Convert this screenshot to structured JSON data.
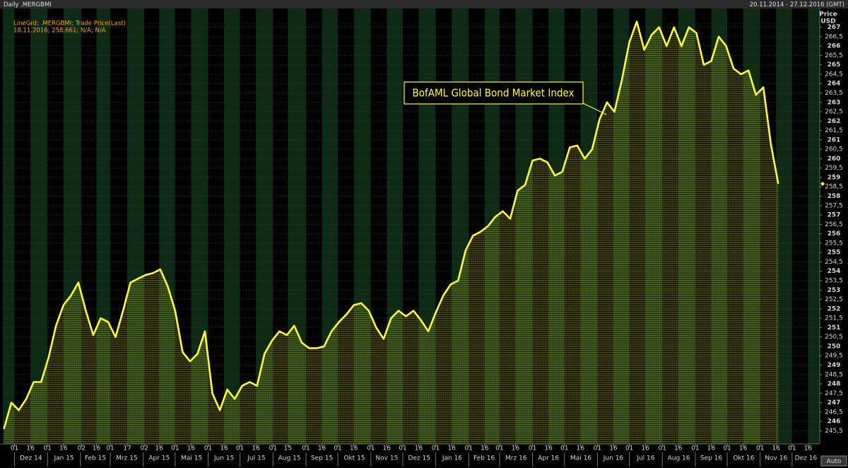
{
  "header": {
    "title": "Daily .MERGBMI",
    "range": "20.11.2014 - 27.12.2016 (GMT)"
  },
  "chart_data": {
    "type": "line",
    "legend_detail": "18.11.2016; 258,661; N/A; N/A",
    "annotation": "BofAML Global Bond Market Index",
    "y_axis_label": "Price",
    "y_axis_unit": "USD",
    "auto_button": "Auto",
    "grid": true,
    "band_colors": [
      "#0d2a14",
      "#000000"
    ],
    "xlim": [
      "2014-11-20",
      "2016-12-27"
    ],
    "ylim": [
      244.8,
      268
    ],
    "x": [
      "2014-11-21",
      "2014-11-28",
      "2014-12-05",
      "2014-12-12",
      "2014-12-19",
      "2014-12-26",
      "2015-01-02",
      "2015-01-09",
      "2015-01-16",
      "2015-01-23",
      "2015-01-30",
      "2015-02-06",
      "2015-02-13",
      "2015-02-20",
      "2015-02-27",
      "2015-03-06",
      "2015-03-13",
      "2015-03-20",
      "2015-03-27",
      "2015-04-03",
      "2015-04-10",
      "2015-04-17",
      "2015-04-24",
      "2015-05-01",
      "2015-05-08",
      "2015-05-15",
      "2015-05-22",
      "2015-05-29",
      "2015-06-05",
      "2015-06-12",
      "2015-06-19",
      "2015-06-26",
      "2015-07-03",
      "2015-07-10",
      "2015-07-17",
      "2015-07-24",
      "2015-07-31",
      "2015-08-07",
      "2015-08-14",
      "2015-08-21",
      "2015-08-28",
      "2015-09-04",
      "2015-09-11",
      "2015-09-18",
      "2015-09-25",
      "2015-10-02",
      "2015-10-09",
      "2015-10-16",
      "2015-10-23",
      "2015-10-30",
      "2015-11-06",
      "2015-11-13",
      "2015-11-20",
      "2015-11-27",
      "2015-12-04",
      "2015-12-11",
      "2015-12-18",
      "2015-12-25",
      "2016-01-01",
      "2016-01-08",
      "2016-01-15",
      "2016-01-22",
      "2016-01-29",
      "2016-02-05",
      "2016-02-12",
      "2016-02-19",
      "2016-02-26",
      "2016-03-04",
      "2016-03-11",
      "2016-03-18",
      "2016-03-25",
      "2016-04-01",
      "2016-04-08",
      "2016-04-15",
      "2016-04-22",
      "2016-04-29",
      "2016-05-06",
      "2016-05-13",
      "2016-05-20",
      "2016-05-27",
      "2016-06-03",
      "2016-06-10",
      "2016-06-17",
      "2016-06-24",
      "2016-07-01",
      "2016-07-08",
      "2016-07-15",
      "2016-07-22",
      "2016-07-29",
      "2016-08-05",
      "2016-08-12",
      "2016-08-19",
      "2016-08-26",
      "2016-09-02",
      "2016-09-09",
      "2016-09-16",
      "2016-09-23",
      "2016-09-30",
      "2016-10-07",
      "2016-10-14",
      "2016-10-21",
      "2016-10-28",
      "2016-11-04",
      "2016-11-11",
      "2016-11-18"
    ],
    "series": [
      {
        "name": "LineGrd; .MERGBMI; Trade Price(Last)",
        "color": "#ffff2e",
        "values": [
          245.6,
          247.0,
          246.6,
          247.2,
          248.1,
          248.1,
          249.4,
          251.1,
          252.2,
          252.7,
          253.4,
          251.9,
          250.6,
          251.5,
          251.3,
          250.5,
          251.9,
          253.4,
          253.6,
          253.8,
          253.9,
          254.1,
          253.2,
          251.9,
          249.7,
          249.2,
          249.6,
          250.8,
          247.5,
          246.6,
          247.7,
          247.2,
          247.9,
          248.1,
          247.9,
          249.6,
          250.3,
          250.8,
          250.6,
          251.1,
          250.2,
          249.9,
          249.9,
          250.0,
          250.8,
          251.3,
          251.7,
          252.2,
          252.3,
          251.9,
          251.0,
          250.4,
          251.5,
          251.9,
          251.6,
          251.9,
          251.4,
          250.8,
          251.8,
          252.7,
          253.3,
          253.5,
          255.1,
          255.9,
          256.1,
          256.4,
          256.9,
          257.2,
          256.8,
          258.3,
          258.6,
          259.9,
          260.0,
          259.8,
          259.1,
          259.3,
          260.6,
          260.7,
          260.0,
          260.5,
          262.1,
          263.0,
          262.5,
          264.2,
          266.2,
          267.3,
          265.8,
          266.6,
          267.0,
          266.0,
          267.0,
          266.0,
          267.0,
          266.7,
          265.0,
          265.2,
          266.5,
          266.0,
          264.8,
          264.5,
          264.7,
          263.4,
          263.8,
          260.8,
          258.661
        ]
      }
    ],
    "yticks": [
      {
        "value": 245.5,
        "label": "245,5"
      },
      246,
      {
        "value": 246.5,
        "label": "246,5"
      },
      247,
      {
        "value": 247.5,
        "label": "247,5"
      },
      248,
      {
        "value": 248.5,
        "label": "248,5"
      },
      249,
      {
        "value": 249.5,
        "label": "249,5"
      },
      250,
      {
        "value": 250.5,
        "label": "250,5"
      },
      251,
      {
        "value": 251.5,
        "label": "251,5"
      },
      252,
      {
        "value": 252.5,
        "label": "252,5"
      },
      253,
      {
        "value": 253.5,
        "label": "253,5"
      },
      254,
      {
        "value": 254.5,
        "label": "254,5"
      },
      255,
      {
        "value": 255.5,
        "label": "255,5"
      },
      256,
      {
        "value": 256.5,
        "label": "256,5"
      },
      257,
      {
        "value": 257.5,
        "label": "257,5"
      },
      258,
      {
        "value": 258.5,
        "label": "258,5"
      },
      259,
      {
        "value": 259.5,
        "label": "259,5"
      },
      260,
      {
        "value": 260.5,
        "label": "260,5"
      },
      261,
      {
        "value": 261.5,
        "label": "261,5"
      },
      262,
      {
        "value": 262.5,
        "label": "262,5"
      },
      263,
      {
        "value": 263.5,
        "label": "263,5"
      },
      264,
      {
        "value": 264.5,
        "label": "264,5"
      },
      265,
      {
        "value": 265.5,
        "label": "265,5"
      },
      266,
      {
        "value": 266.5,
        "label": "266,5"
      },
      267
    ],
    "xticks": [
      {
        "value": "2014-12-01",
        "label": "01"
      },
      {
        "value": "2014-12-16",
        "label": "16"
      },
      {
        "value": "2015-01-01",
        "label": "01"
      },
      {
        "value": "2015-01-16",
        "label": "16"
      },
      {
        "value": "2015-02-02",
        "label": "02"
      },
      {
        "value": "2015-02-16",
        "label": "16"
      },
      {
        "value": "2015-03-01",
        "label": "01"
      },
      {
        "value": "2015-03-17",
        "label": "17"
      },
      {
        "value": "2015-04-02",
        "label": "02"
      },
      {
        "value": "2015-04-16",
        "label": "16"
      },
      {
        "value": "2015-05-01",
        "label": "01"
      },
      {
        "value": "2015-05-16",
        "label": "16"
      },
      {
        "value": "2015-06-01",
        "label": "01"
      },
      {
        "value": "2015-06-16",
        "label": "16"
      },
      {
        "value": "2015-07-01",
        "label": "01"
      },
      {
        "value": "2015-07-16",
        "label": "16"
      },
      {
        "value": "2015-08-01",
        "label": "01"
      },
      {
        "value": "2015-08-15",
        "label": "15"
      },
      {
        "value": "2015-09-01",
        "label": "01"
      },
      {
        "value": "2015-09-16",
        "label": "16"
      },
      {
        "value": "2015-10-01",
        "label": "01"
      },
      {
        "value": "2015-10-16",
        "label": "16"
      },
      {
        "value": "2015-11-01",
        "label": "01"
      },
      {
        "value": "2015-11-16",
        "label": "16"
      },
      {
        "value": "2015-12-01",
        "label": "01"
      },
      {
        "value": "2015-12-16",
        "label": "16"
      },
      {
        "value": "2016-01-01",
        "label": "01"
      },
      {
        "value": "2016-01-16",
        "label": "16"
      },
      {
        "value": "2016-02-01",
        "label": "01"
      },
      {
        "value": "2016-02-16",
        "label": "16"
      },
      {
        "value": "2016-03-01",
        "label": "01"
      },
      {
        "value": "2016-03-16",
        "label": "16"
      },
      {
        "value": "2016-04-01",
        "label": "01"
      },
      {
        "value": "2016-04-16",
        "label": "16"
      },
      {
        "value": "2016-05-01",
        "label": "01"
      },
      {
        "value": "2016-05-16",
        "label": "16"
      },
      {
        "value": "2016-06-01",
        "label": "01"
      },
      {
        "value": "2016-06-16",
        "label": "16"
      },
      {
        "value": "2016-07-01",
        "label": "01"
      },
      {
        "value": "2016-07-16",
        "label": "16"
      },
      {
        "value": "2016-08-01",
        "label": "01"
      },
      {
        "value": "2016-08-16",
        "label": "16"
      },
      {
        "value": "2016-09-01",
        "label": "01"
      },
      {
        "value": "2016-09-16",
        "label": "16"
      },
      {
        "value": "2016-10-01",
        "label": "01"
      },
      {
        "value": "2016-10-16",
        "label": "16"
      },
      {
        "value": "2016-11-01",
        "label": "01"
      },
      {
        "value": "2016-11-16",
        "label": "16"
      },
      {
        "value": "2016-12-01",
        "label": "01"
      },
      {
        "value": "2016-12-16",
        "label": "16"
      }
    ],
    "x_month_labels": [
      {
        "value": "2014-12",
        "label": "Dez 14"
      },
      {
        "value": "2015-01",
        "label": "Jan 15"
      },
      {
        "value": "2015-02",
        "label": "Feb 15"
      },
      {
        "value": "2015-03",
        "label": "Mrz 15"
      },
      {
        "value": "2015-04",
        "label": "Apr 15"
      },
      {
        "value": "2015-05",
        "label": "Mai 15"
      },
      {
        "value": "2015-06",
        "label": "Jun 15"
      },
      {
        "value": "2015-07",
        "label": "Jul 15"
      },
      {
        "value": "2015-08",
        "label": "Aug 15"
      },
      {
        "value": "2015-09",
        "label": "Sep 15"
      },
      {
        "value": "2015-10",
        "label": "Okt 15"
      },
      {
        "value": "2015-11",
        "label": "Nov 15"
      },
      {
        "value": "2015-12",
        "label": "Dez 15"
      },
      {
        "value": "2016-01",
        "label": "Jan 16"
      },
      {
        "value": "2016-02",
        "label": "Feb 16"
      },
      {
        "value": "2016-03",
        "label": "Mrz 16"
      },
      {
        "value": "2016-04",
        "label": "Apr 16"
      },
      {
        "value": "2016-05",
        "label": "Mai 16"
      },
      {
        "value": "2016-06",
        "label": "Jun 16"
      },
      {
        "value": "2016-07",
        "label": "Jul 16"
      },
      {
        "value": "2016-08",
        "label": "Aug 16"
      },
      {
        "value": "2016-09",
        "label": "Sep 16"
      },
      {
        "value": "2016-10",
        "label": "Okt 16"
      },
      {
        "value": "2016-11",
        "label": "Nov 16"
      },
      {
        "value": "2016-12",
        "label": "Dez 16"
      }
    ]
  }
}
